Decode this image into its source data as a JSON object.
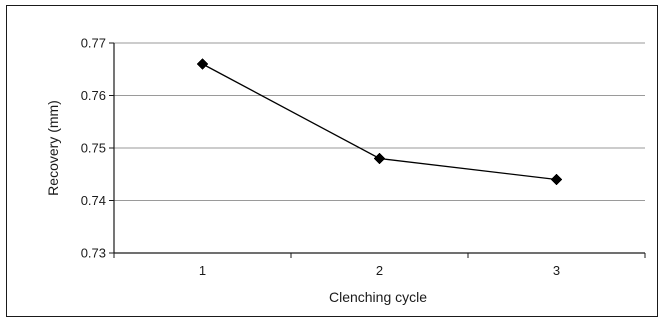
{
  "chart_data": {
    "type": "line",
    "title": "",
    "xlabel": "Clenching cycle",
    "ylabel": "Recovery (mm)",
    "categories": [
      "1",
      "2",
      "3"
    ],
    "x": [
      1,
      2,
      3
    ],
    "series": [
      {
        "values": [
          0.766,
          0.748,
          0.744
        ],
        "marker": "diamond",
        "color": "#000000"
      }
    ],
    "ylim": [
      0.73,
      0.77
    ],
    "yticks": [
      0.73,
      0.74,
      0.75,
      0.76,
      0.77
    ],
    "ytick_labels": [
      "0.73",
      "0.74",
      "0.75",
      "0.76",
      "0.77"
    ],
    "grid": "horizontal",
    "legend": "none",
    "gridline_color": "#9a9a9a",
    "line_color": "#000000"
  }
}
